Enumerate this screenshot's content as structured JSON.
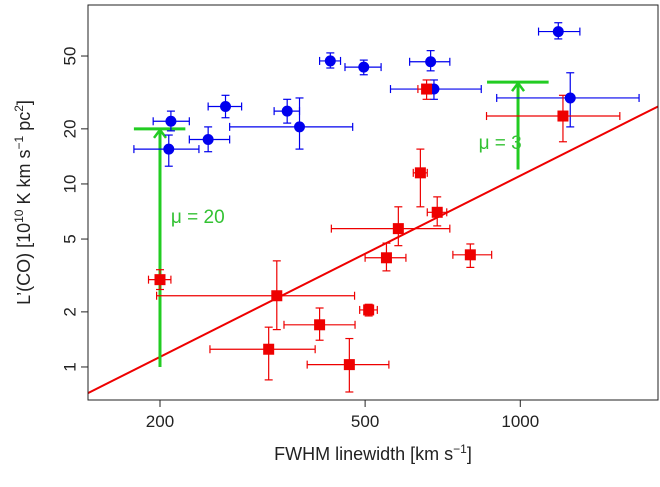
{
  "chart_data": {
    "type": "scatter",
    "xscale": "log",
    "yscale": "log",
    "xlim": [
      145,
      1850
    ],
    "ylim": [
      0.66,
      95
    ],
    "xlabel_parts": [
      "FWHM linewidth [km s",
      "−1",
      "]"
    ],
    "ylabel_parts": [
      "L’(CO) [10",
      "10",
      " K km s",
      "−1",
      " pc",
      "2",
      "]"
    ],
    "xticks": [
      200,
      500,
      1000
    ],
    "xtick_labels": [
      "200",
      "500",
      "1000"
    ],
    "yticks": [
      1,
      2,
      5,
      10,
      20,
      50
    ],
    "ytick_labels": [
      "1",
      "2",
      "5",
      "10",
      "20",
      "50"
    ],
    "grid": false,
    "colors": {
      "blue": "#0000ee",
      "red": "#ee0000",
      "green": "#22cc22",
      "axis": "#222222"
    },
    "fit_line": {
      "x": [
        145,
        1850
      ],
      "y": [
        0.72,
        26.5
      ]
    },
    "series": [
      {
        "marker": "circle",
        "color": "#0000ee",
        "points": [
          {
            "x": 210,
            "y": 22.0,
            "xerr": [
              16,
              18
            ],
            "yerr": [
              2.5,
              3
            ]
          },
          {
            "x": 208,
            "y": 15.5,
            "xerr": [
              30,
              30
            ],
            "yerr": [
              3,
              3
            ]
          },
          {
            "x": 248,
            "y": 17.5,
            "xerr": [
              20,
              25
            ],
            "yerr": [
              2.5,
              3
            ]
          },
          {
            "x": 268,
            "y": 26.5,
            "xerr": [
              20,
              20
            ],
            "yerr": [
              3.5,
              4
            ]
          },
          {
            "x": 353,
            "y": 25.0,
            "xerr": [
              20,
              20
            ],
            "yerr": [
              3.5,
              4
            ]
          },
          {
            "x": 373,
            "y": 20.5,
            "xerr": [
              100,
              100
            ],
            "yerr": [
              5,
              9
            ]
          },
          {
            "x": 428,
            "y": 47.0,
            "xerr": [
              20,
              20
            ],
            "yerr": [
              4,
              5
            ]
          },
          {
            "x": 497,
            "y": 43.5,
            "xerr": [
              40,
              40
            ],
            "yerr": [
              4,
              4
            ]
          },
          {
            "x": 670,
            "y": 46.5,
            "xerr": [
              60,
              60
            ],
            "yerr": [
              5,
              7
            ]
          },
          {
            "x": 680,
            "y": 33.0,
            "xerr": [
              120,
              160
            ],
            "yerr": [
              4,
              4
            ]
          },
          {
            "x": 1185,
            "y": 68.0,
            "xerr": [
              100,
              120
            ],
            "yerr": [
              6,
              8
            ]
          },
          {
            "x": 1250,
            "y": 29.5,
            "xerr": [
              350,
              450
            ],
            "yerr": [
              9,
              11
            ]
          }
        ]
      },
      {
        "marker": "square",
        "color": "#ee0000",
        "points": [
          {
            "x": 200,
            "y": 3.0,
            "xerr": [
              10,
              10
            ],
            "yerr": [
              0.35,
              0.4
            ]
          },
          {
            "x": 337,
            "y": 2.45,
            "xerr": [
              140,
              140
            ],
            "yerr": [
              0.85,
              1.35
            ]
          },
          {
            "x": 325,
            "y": 1.25,
            "xerr": [
              75,
              75
            ],
            "yerr": [
              0.4,
              0.4
            ]
          },
          {
            "x": 408,
            "y": 1.7,
            "xerr": [
              60,
              70
            ],
            "yerr": [
              0.3,
              0.4
            ]
          },
          {
            "x": 466,
            "y": 1.03,
            "xerr": [
              80,
              90
            ],
            "yerr": [
              0.3,
              0.4
            ]
          },
          {
            "x": 508,
            "y": 2.05,
            "xerr": [
              20,
              20
            ],
            "yerr": [
              0.15,
              0.15
            ]
          },
          {
            "x": 550,
            "y": 3.95,
            "xerr": [
              50,
              50
            ],
            "yerr": [
              0.6,
              0.8
            ]
          },
          {
            "x": 580,
            "y": 5.7,
            "xerr": [
              150,
              150
            ],
            "yerr": [
              1.1,
              1.8
            ]
          },
          {
            "x": 640,
            "y": 11.5,
            "xerr": [
              20,
              20
            ],
            "yerr": [
              4,
              4
            ]
          },
          {
            "x": 690,
            "y": 7.0,
            "xerr": [
              30,
              30
            ],
            "yerr": [
              1.1,
              1.5
            ]
          },
          {
            "x": 658,
            "y": 33.0,
            "xerr": [
              25,
              25
            ],
            "yerr": [
              4,
              4
            ]
          },
          {
            "x": 800,
            "y": 4.1,
            "xerr": [
              60,
              80
            ],
            "yerr": [
              0.6,
              0.6
            ]
          },
          {
            "x": 1210,
            "y": 23.5,
            "xerr": [
              350,
              350
            ],
            "yerr": [
              6.5,
              7
            ]
          }
        ]
      }
    ],
    "arrows": [
      {
        "x": 200,
        "y_from": 1.0,
        "y_to": 20.0,
        "cap_x": [
          178,
          224
        ]
      },
      {
        "x": 990,
        "y_from": 12.0,
        "y_to": 36.0,
        "cap_x": [
          862,
          1135
        ]
      }
    ],
    "annotations": [
      {
        "text": "μ = 20",
        "x": 210,
        "y": 6.1
      },
      {
        "text": "μ = 3",
        "x": 830,
        "y": 15.5
      }
    ]
  }
}
